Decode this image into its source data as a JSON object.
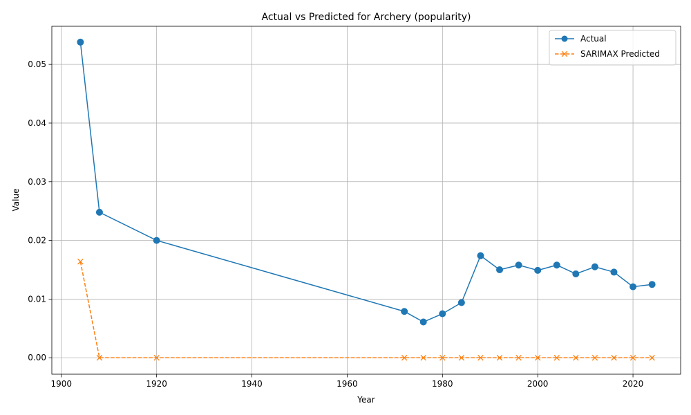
{
  "chart_data": {
    "type": "line",
    "title": "Actual vs Predicted for Archery (popularity)",
    "xlabel": "Year",
    "ylabel": "Value",
    "xlim": [
      1898,
      2030
    ],
    "ylim": [
      -0.0028,
      0.0565
    ],
    "xticks": [
      1900,
      1920,
      1940,
      1960,
      1980,
      2000,
      2020
    ],
    "yticks": [
      0.0,
      0.01,
      0.02,
      0.03,
      0.04,
      0.05
    ],
    "ytick_labels": [
      "0.00",
      "0.01",
      "0.02",
      "0.03",
      "0.04",
      "0.05"
    ],
    "grid": true,
    "legend_position": "top-right",
    "series": [
      {
        "name": "Actual",
        "color": "#1f77b4",
        "marker": "circle",
        "linestyle": "solid",
        "x": [
          1904,
          1908,
          1920,
          1972,
          1976,
          1980,
          1984,
          1988,
          1992,
          1996,
          2000,
          2004,
          2008,
          2012,
          2016,
          2020,
          2024
        ],
        "y": [
          0.0538,
          0.0248,
          0.02,
          0.0079,
          0.0061,
          0.0075,
          0.0094,
          0.0174,
          0.015,
          0.0158,
          0.0149,
          0.0158,
          0.0143,
          0.0155,
          0.0146,
          0.0121,
          0.0125
        ]
      },
      {
        "name": "SARIMAX Predicted",
        "color": "#ff7f0e",
        "marker": "x",
        "linestyle": "dashed",
        "x": [
          1904,
          1908,
          1920,
          1972,
          1976,
          1980,
          1984,
          1988,
          1992,
          1996,
          2000,
          2004,
          2008,
          2012,
          2016,
          2020,
          2024
        ],
        "y": [
          0.0164,
          0.0,
          0.0,
          0.0,
          0.0,
          0.0,
          0.0,
          0.0,
          0.0,
          0.0,
          0.0,
          0.0,
          0.0,
          0.0,
          0.0,
          0.0,
          0.0
        ]
      }
    ]
  }
}
